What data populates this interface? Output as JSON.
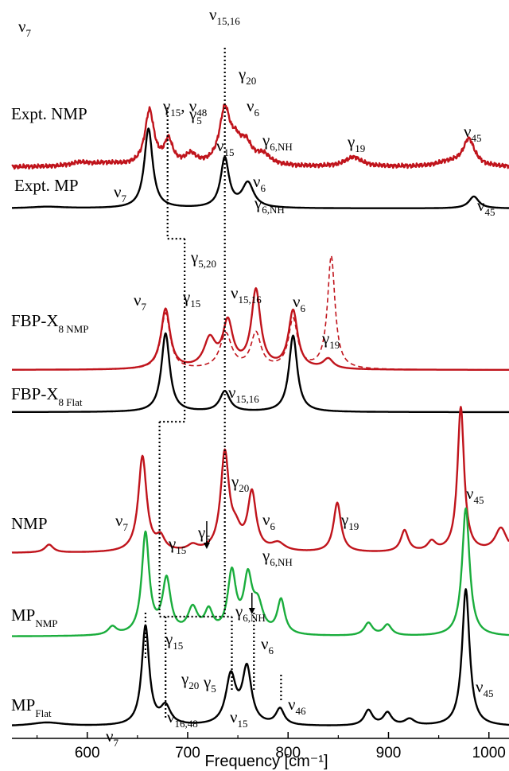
{
  "chart_data": {
    "type": "line",
    "title": "",
    "xlabel": "Frequency [cm⁻¹]",
    "ylabel": "",
    "xlim": [
      525,
      1020
    ],
    "x_ticks": [
      "600",
      "700",
      "800",
      "900",
      "1000"
    ],
    "x_tick_values": [
      600,
      700,
      800,
      900,
      1000
    ],
    "y_ticks": [],
    "grid": false,
    "legend": "none",
    "colors": {
      "red": "#c0141c",
      "black": "#000000",
      "green": "#1aad3c"
    },
    "series": [
      {
        "name": "Expt. NMP",
        "color": "red",
        "style": "solid",
        "label_x": 525,
        "noise": true,
        "peaks": [
          [
            662,
            75,
            5.5
          ],
          [
            681,
            33,
            5
          ],
          [
            703,
            14,
            7
          ],
          [
            737,
            75,
            6.5
          ],
          [
            748,
            22,
            6
          ],
          [
            758,
            26,
            7
          ],
          [
            775,
            14,
            9
          ],
          [
            620,
            4,
            18
          ],
          [
            593,
            5,
            12
          ],
          [
            865,
            13,
            10
          ],
          [
            980,
            37,
            7
          ],
          [
            960,
            6,
            14
          ]
        ],
        "base": 0
      },
      {
        "name": "Expt. MP",
        "color": "black",
        "style": "solid",
        "label_x": 525,
        "peaks": [
          [
            661,
            100,
            5
          ],
          [
            737,
            62,
            5
          ],
          [
            760,
            31,
            7
          ],
          [
            985,
            15,
            6
          ],
          [
            560,
            2,
            20
          ]
        ],
        "base": 0
      },
      {
        "name": "FBP-X8 NMP",
        "color": "red",
        "style": "solid",
        "label_x": 525,
        "peaks": [
          [
            678,
            85,
            5.5
          ],
          [
            722,
            40,
            7
          ],
          [
            740,
            64,
            6
          ],
          [
            768,
            110,
            5.5
          ],
          [
            805,
            82,
            5.5
          ],
          [
            840,
            14,
            6
          ]
        ],
        "base": 0
      },
      {
        "name": "FBP-X8 NMP (dashed)",
        "color": "red",
        "style": "dashed",
        "peaks": [
          [
            678,
            80,
            5.5
          ],
          [
            738,
            50,
            7
          ],
          [
            768,
            50,
            6
          ],
          [
            805,
            70,
            5.5
          ],
          [
            843,
            160,
            4.5
          ]
        ],
        "base": 0
      },
      {
        "name": "FBP-X8 Flat",
        "color": "black",
        "style": "solid",
        "label_x": 525,
        "peaks": [
          [
            678,
            108,
            5
          ],
          [
            737,
            28,
            6
          ],
          [
            805,
            105,
            5
          ]
        ],
        "base": 0
      },
      {
        "name": "NMP",
        "color": "red",
        "style": "solid",
        "label_x": 525,
        "peaks": [
          [
            562,
            10,
            5
          ],
          [
            655,
            120,
            5
          ],
          [
            673,
            16,
            5
          ],
          [
            705,
            7,
            6
          ],
          [
            737,
            122,
            5
          ],
          [
            748,
            20,
            6
          ],
          [
            764,
            72,
            5
          ],
          [
            790,
            10,
            8
          ],
          [
            849,
            62,
            4.5
          ],
          [
            916,
            27,
            4.5
          ],
          [
            943,
            12,
            5
          ],
          [
            972,
            182,
            4
          ],
          [
            1012,
            30,
            7
          ]
        ],
        "base": 0
      },
      {
        "name": "MP NMP",
        "color": "green",
        "style": "solid",
        "label_x": 525,
        "peaks": [
          [
            625,
            9,
            5
          ],
          [
            658,
            112,
            4.5
          ],
          [
            679,
            60,
            5
          ],
          [
            705,
            28,
            6
          ],
          [
            721,
            24,
            5
          ],
          [
            744,
            67,
            5
          ],
          [
            760,
            59,
            5
          ],
          [
            770,
            30,
            6
          ],
          [
            793,
            38,
            4.5
          ],
          [
            880,
            14,
            5
          ],
          [
            899,
            12,
            5
          ],
          [
            977,
            142,
            4.5
          ]
        ],
        "base": 0
      },
      {
        "name": "MP Flat",
        "color": "black",
        "style": "solid",
        "label_x": 525,
        "peaks": [
          [
            560,
            4,
            20
          ],
          [
            658,
            110,
            4.5
          ],
          [
            678,
            20,
            6
          ],
          [
            743,
            54,
            6
          ],
          [
            759,
            62,
            5.5
          ],
          [
            792,
            18,
            5
          ],
          [
            880,
            17,
            5
          ],
          [
            899,
            14,
            5
          ],
          [
            921,
            7,
            6
          ],
          [
            977,
            152,
            4.5
          ]
        ],
        "base": 0
      }
    ],
    "panel_labels": [
      {
        "main": "Expt. NMP",
        "sub": ""
      },
      {
        "main": "Expt. MP",
        "sub": ""
      },
      {
        "main": "FBP-X",
        "sub": "8 NMP"
      },
      {
        "main": "FBP-X",
        "sub": "8 Flat"
      },
      {
        "main": "NMP",
        "sub": ""
      },
      {
        "main": "MP",
        "sub": "NMP"
      },
      {
        "main": "MP",
        "sub": "Flat"
      }
    ],
    "annotations": [
      {
        "sym": "ν",
        "sub": "7",
        "sub2": ""
      },
      {
        "sym": "γ",
        "sub": "15",
        "sub2": "",
        "extra": ", ν",
        "extra_sub": "48"
      },
      {
        "sym": "ν",
        "sub": "15,16",
        "sub2": ""
      },
      {
        "sym": "γ",
        "sub": "5",
        "sub2": ""
      },
      {
        "sym": "γ",
        "sub": "20",
        "sub2": ""
      },
      {
        "sym": "ν",
        "sub": "6",
        "sub2": ""
      },
      {
        "sym": "γ",
        "sub": "6,NH",
        "sub2": ""
      },
      {
        "sym": "γ",
        "sub": "19",
        "sub2": ""
      },
      {
        "sym": "ν",
        "sub": "45",
        "sub2": ""
      },
      {
        "sym": "ν",
        "sub": "7",
        "sub2": ""
      },
      {
        "sym": "ν",
        "sub": "15",
        "sub2": ""
      },
      {
        "sym": "ν",
        "sub": "6",
        "sub2": ""
      },
      {
        "sym": "ν",
        "sub": "45",
        "sub2": ""
      },
      {
        "sym": "γ",
        "sub": "6,NH",
        "sub2": ""
      },
      {
        "sym": "γ",
        "sub": "5,20",
        "sub2": ""
      },
      {
        "sym": "γ",
        "sub": "15",
        "sub2": ""
      },
      {
        "sym": "ν",
        "sub": "7",
        "sub2": ""
      },
      {
        "sym": "ν",
        "sub": "6",
        "sub2": ""
      },
      {
        "sym": "γ",
        "sub": "19",
        "sub2": ""
      },
      {
        "sym": "ν",
        "sub": "15,16",
        "sub2": ""
      },
      {
        "sym": "ν",
        "sub": "15,16",
        "sub2": ""
      },
      {
        "sym": "ν",
        "sub": "7",
        "sub2": ""
      },
      {
        "sym": "γ",
        "sub": "20",
        "sub2": ""
      },
      {
        "sym": "ν",
        "sub": "6",
        "sub2": ""
      },
      {
        "sym": "γ",
        "sub": "15",
        "sub2": ""
      },
      {
        "sym": "γ",
        "sub": "5",
        "sub2": ""
      },
      {
        "sym": "γ",
        "sub": "6,NH",
        "sub2": ""
      },
      {
        "sym": "γ",
        "sub": "19",
        "sub2": ""
      },
      {
        "sym": "ν",
        "sub": "45",
        "sub2": ""
      },
      {
        "sym": "γ",
        "sub": "6,NH",
        "sub2": ""
      },
      {
        "sym": "γ",
        "sub": "15",
        "sub2": ""
      },
      {
        "sym": "ν",
        "sub": "6",
        "sub2": ""
      },
      {
        "sym": "γ",
        "sub": "20",
        "sub2": ""
      },
      {
        "sym": "γ",
        "sub": "5",
        "sub2": ""
      },
      {
        "sym": "ν",
        "sub": "46",
        "sub2": ""
      },
      {
        "sym": "ν",
        "sub": "45",
        "sub2": ""
      },
      {
        "sym": "ν",
        "sub": "7",
        "sub2": ""
      },
      {
        "sym": "ν",
        "sub": "16,48",
        "sub2": ""
      },
      {
        "sym": "ν",
        "sub": "15",
        "sub2": ""
      }
    ]
  }
}
